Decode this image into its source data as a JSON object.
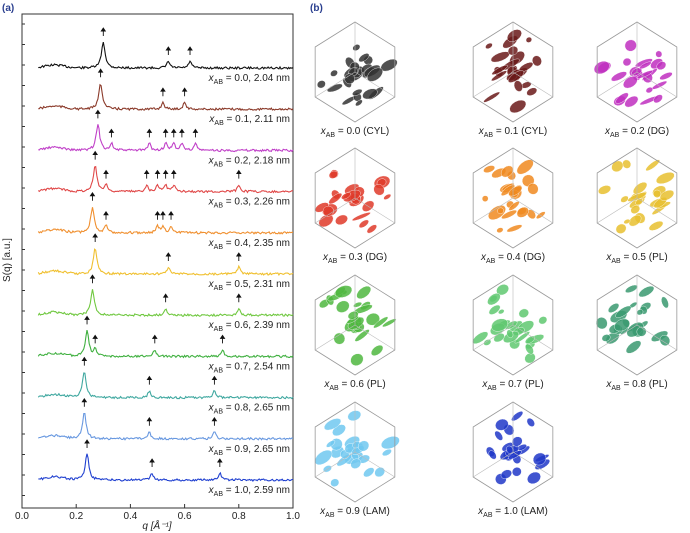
{
  "chart_data": {
    "type": "line",
    "panel_label": "(a)",
    "ylabel": "S(q) [a.u.]",
    "xlabel": "q [Å⁻¹]",
    "xlim": [
      0,
      1.0
    ],
    "xticks": [
      {
        "value": 0,
        "label": "0.0"
      },
      0.2,
      0.4,
      0.6,
      0.8,
      {
        "value": 1,
        "label": "1.0"
      }
    ],
    "series": [
      {
        "name": "xAB = 0.0, 2.04 nm",
        "color": "#111111",
        "peaks": [
          0.3,
          0.54,
          0.62
        ]
      },
      {
        "name": "xAB = 0.1, 2.11 nm",
        "color": "#8b3a2a",
        "peaks": [
          0.29,
          0.52,
          0.6
        ]
      },
      {
        "name": "xAB = 0.2, 2.18 nm",
        "color": "#c040c8",
        "peaks": [
          0.28,
          0.33,
          0.47,
          0.53,
          0.56,
          0.59,
          0.64
        ]
      },
      {
        "name": "xAB = 0.3, 2.26 nm",
        "color": "#e04848",
        "peaks": [
          0.27,
          0.31,
          0.46,
          0.5,
          0.53,
          0.56,
          0.8
        ]
      },
      {
        "name": "xAB = 0.4, 2.35 nm",
        "color": "#f09030",
        "peaks": [
          0.26,
          0.31,
          0.5,
          0.52,
          0.55
        ]
      },
      {
        "name": "xAB = 0.5, 2.31 nm",
        "color": "#f0c030",
        "peaks": [
          0.27,
          0.54,
          0.8
        ]
      },
      {
        "name": "xAB = 0.6, 2.39 nm",
        "color": "#70c840",
        "peaks": [
          0.26,
          0.53,
          0.8
        ]
      },
      {
        "name": "xAB = 0.7, 2.54 nm",
        "color": "#40b040",
        "peaks": [
          0.24,
          0.27,
          0.49,
          0.74
        ]
      },
      {
        "name": "xAB = 0.8, 2.65 nm",
        "color": "#40a8a0",
        "peaks": [
          0.23,
          0.47,
          0.71
        ]
      },
      {
        "name": "xAB = 0.9, 2.65 nm",
        "color": "#6898e0",
        "peaks": [
          0.23,
          0.47,
          0.71
        ]
      },
      {
        "name": "xAB = 1.0, 2.59 nm",
        "color": "#2040d0",
        "peaks": [
          0.24,
          0.48,
          0.73
        ]
      }
    ]
  },
  "panel_b": {
    "label": "(b)",
    "items": [
      {
        "label": "xAB = 0.0 (CYL)",
        "color": "#333333"
      },
      {
        "label": "xAB = 0.1 (CYL)",
        "color": "#6a1a1a"
      },
      {
        "label": "xAB = 0.2 (DG)",
        "color": "#c030c0"
      },
      {
        "label": "xAB = 0.3 (DG)",
        "color": "#e03a2a"
      },
      {
        "label": "xAB = 0.4 (DG)",
        "color": "#f08a20"
      },
      {
        "label": "xAB = 0.5 (PL)",
        "color": "#e8c030"
      },
      {
        "label": "xAB = 0.6 (PL)",
        "color": "#50b840"
      },
      {
        "label": "xAB = 0.7 (PL)",
        "color": "#60c870"
      },
      {
        "label": "xAB = 0.8 (PL)",
        "color": "#3a9a70"
      },
      {
        "label": "xAB = 0.9 (LAM)",
        "color": "#70c8f0"
      },
      {
        "label": "xAB = 1.0 (LAM)",
        "color": "#2038c8"
      }
    ]
  }
}
